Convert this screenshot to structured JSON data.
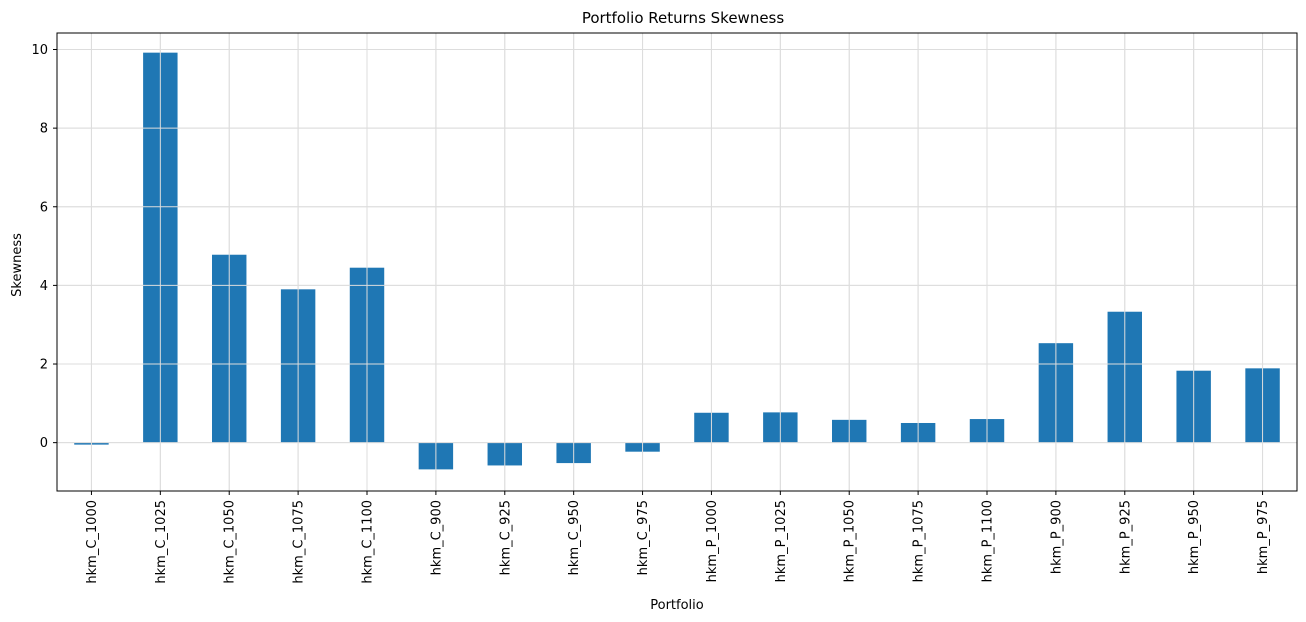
{
  "chart_data": {
    "type": "bar",
    "title": "Portfolio Returns Skewness",
    "xlabel": "Portfolio",
    "ylabel": "Skewness",
    "categories": [
      "hkm_C_1000",
      "hkm_C_1025",
      "hkm_C_1050",
      "hkm_C_1075",
      "hkm_C_1100",
      "hkm_C_900",
      "hkm_C_925",
      "hkm_C_950",
      "hkm_C_975",
      "hkm_P_1000",
      "hkm_P_1025",
      "hkm_P_1050",
      "hkm_P_1075",
      "hkm_P_1100",
      "hkm_P_900",
      "hkm_P_925",
      "hkm_P_950",
      "hkm_P_975"
    ],
    "values": [
      -0.05,
      9.92,
      4.78,
      3.9,
      4.45,
      -0.68,
      -0.58,
      -0.52,
      -0.23,
      0.76,
      0.77,
      0.58,
      0.5,
      0.6,
      2.53,
      3.33,
      1.83,
      1.89
    ],
    "ylim": [
      -1.23,
      10.42
    ],
    "yticks": [
      0,
      2,
      4,
      6,
      8,
      10
    ],
    "grid": true,
    "bar_color": "#1f77b4",
    "grid_color": "#dddddd"
  }
}
